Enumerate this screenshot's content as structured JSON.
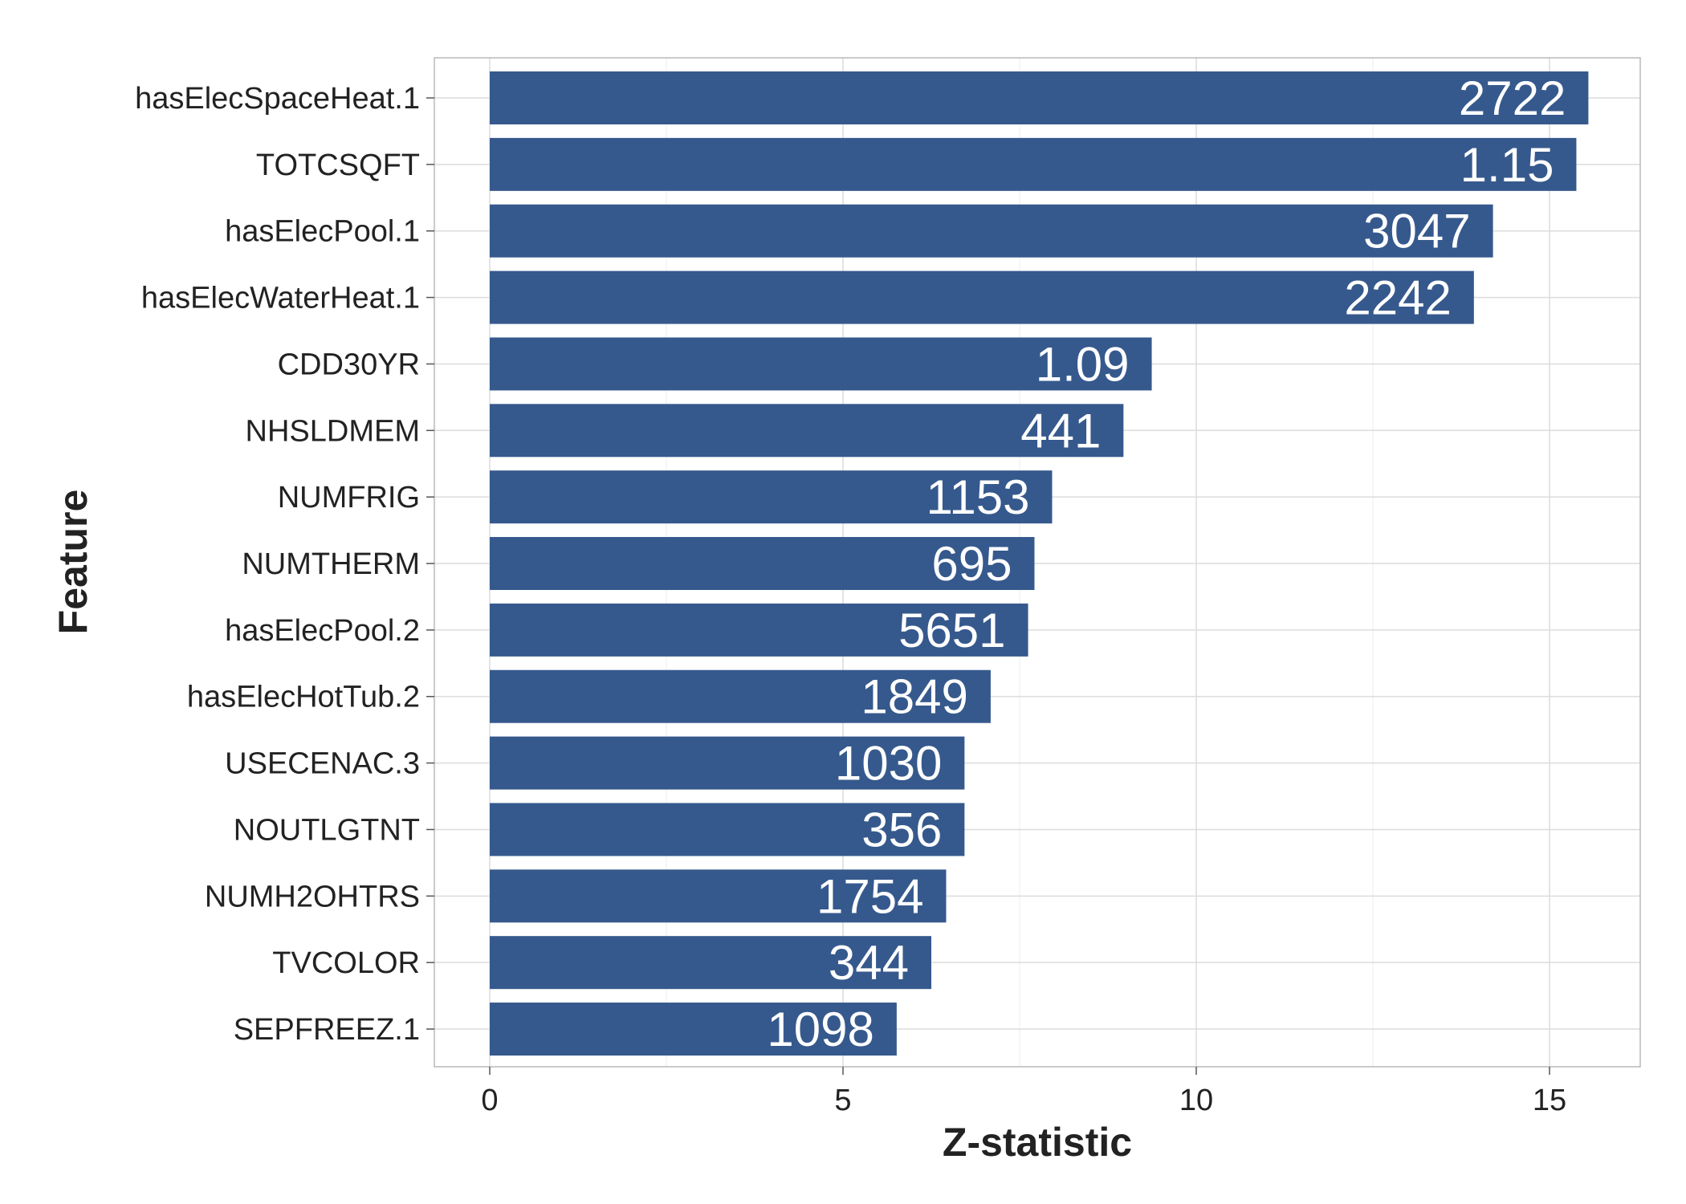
{
  "chart_data": {
    "type": "bar",
    "orientation": "horizontal",
    "title": "",
    "xlabel": "Z-statistic",
    "ylabel": "Feature",
    "xlim": [
      -1.6,
      16.1
    ],
    "xticks": [
      0,
      5,
      10,
      15
    ],
    "grid": true,
    "legend": "none",
    "bar_color": "#36598d",
    "categories": [
      "hasElecSpaceHeat.1",
      "TOTCSQFT",
      "hasElecPool.1",
      "hasElecWaterHeat.1",
      "CDD30YR",
      "NHSLDMEM",
      "NUMFRIG",
      "NUMTHERM",
      "hasElecPool.2",
      "hasElecHotTub.2",
      "USECENAC.3",
      "NOUTLGTNT",
      "NUMH2OHTRS",
      "TVCOLOR",
      "SEPFREEZ.1"
    ],
    "values": [
      15.55,
      15.38,
      14.2,
      13.93,
      9.37,
      8.97,
      7.96,
      7.71,
      7.62,
      7.09,
      6.72,
      6.72,
      6.46,
      6.25,
      5.76
    ],
    "bar_labels": [
      "2722",
      "1.15",
      "3047",
      "2242",
      "1.09",
      "441",
      "1153",
      "695",
      "5651",
      "1849",
      "1030",
      "356",
      "1754",
      "344",
      "1098"
    ]
  }
}
